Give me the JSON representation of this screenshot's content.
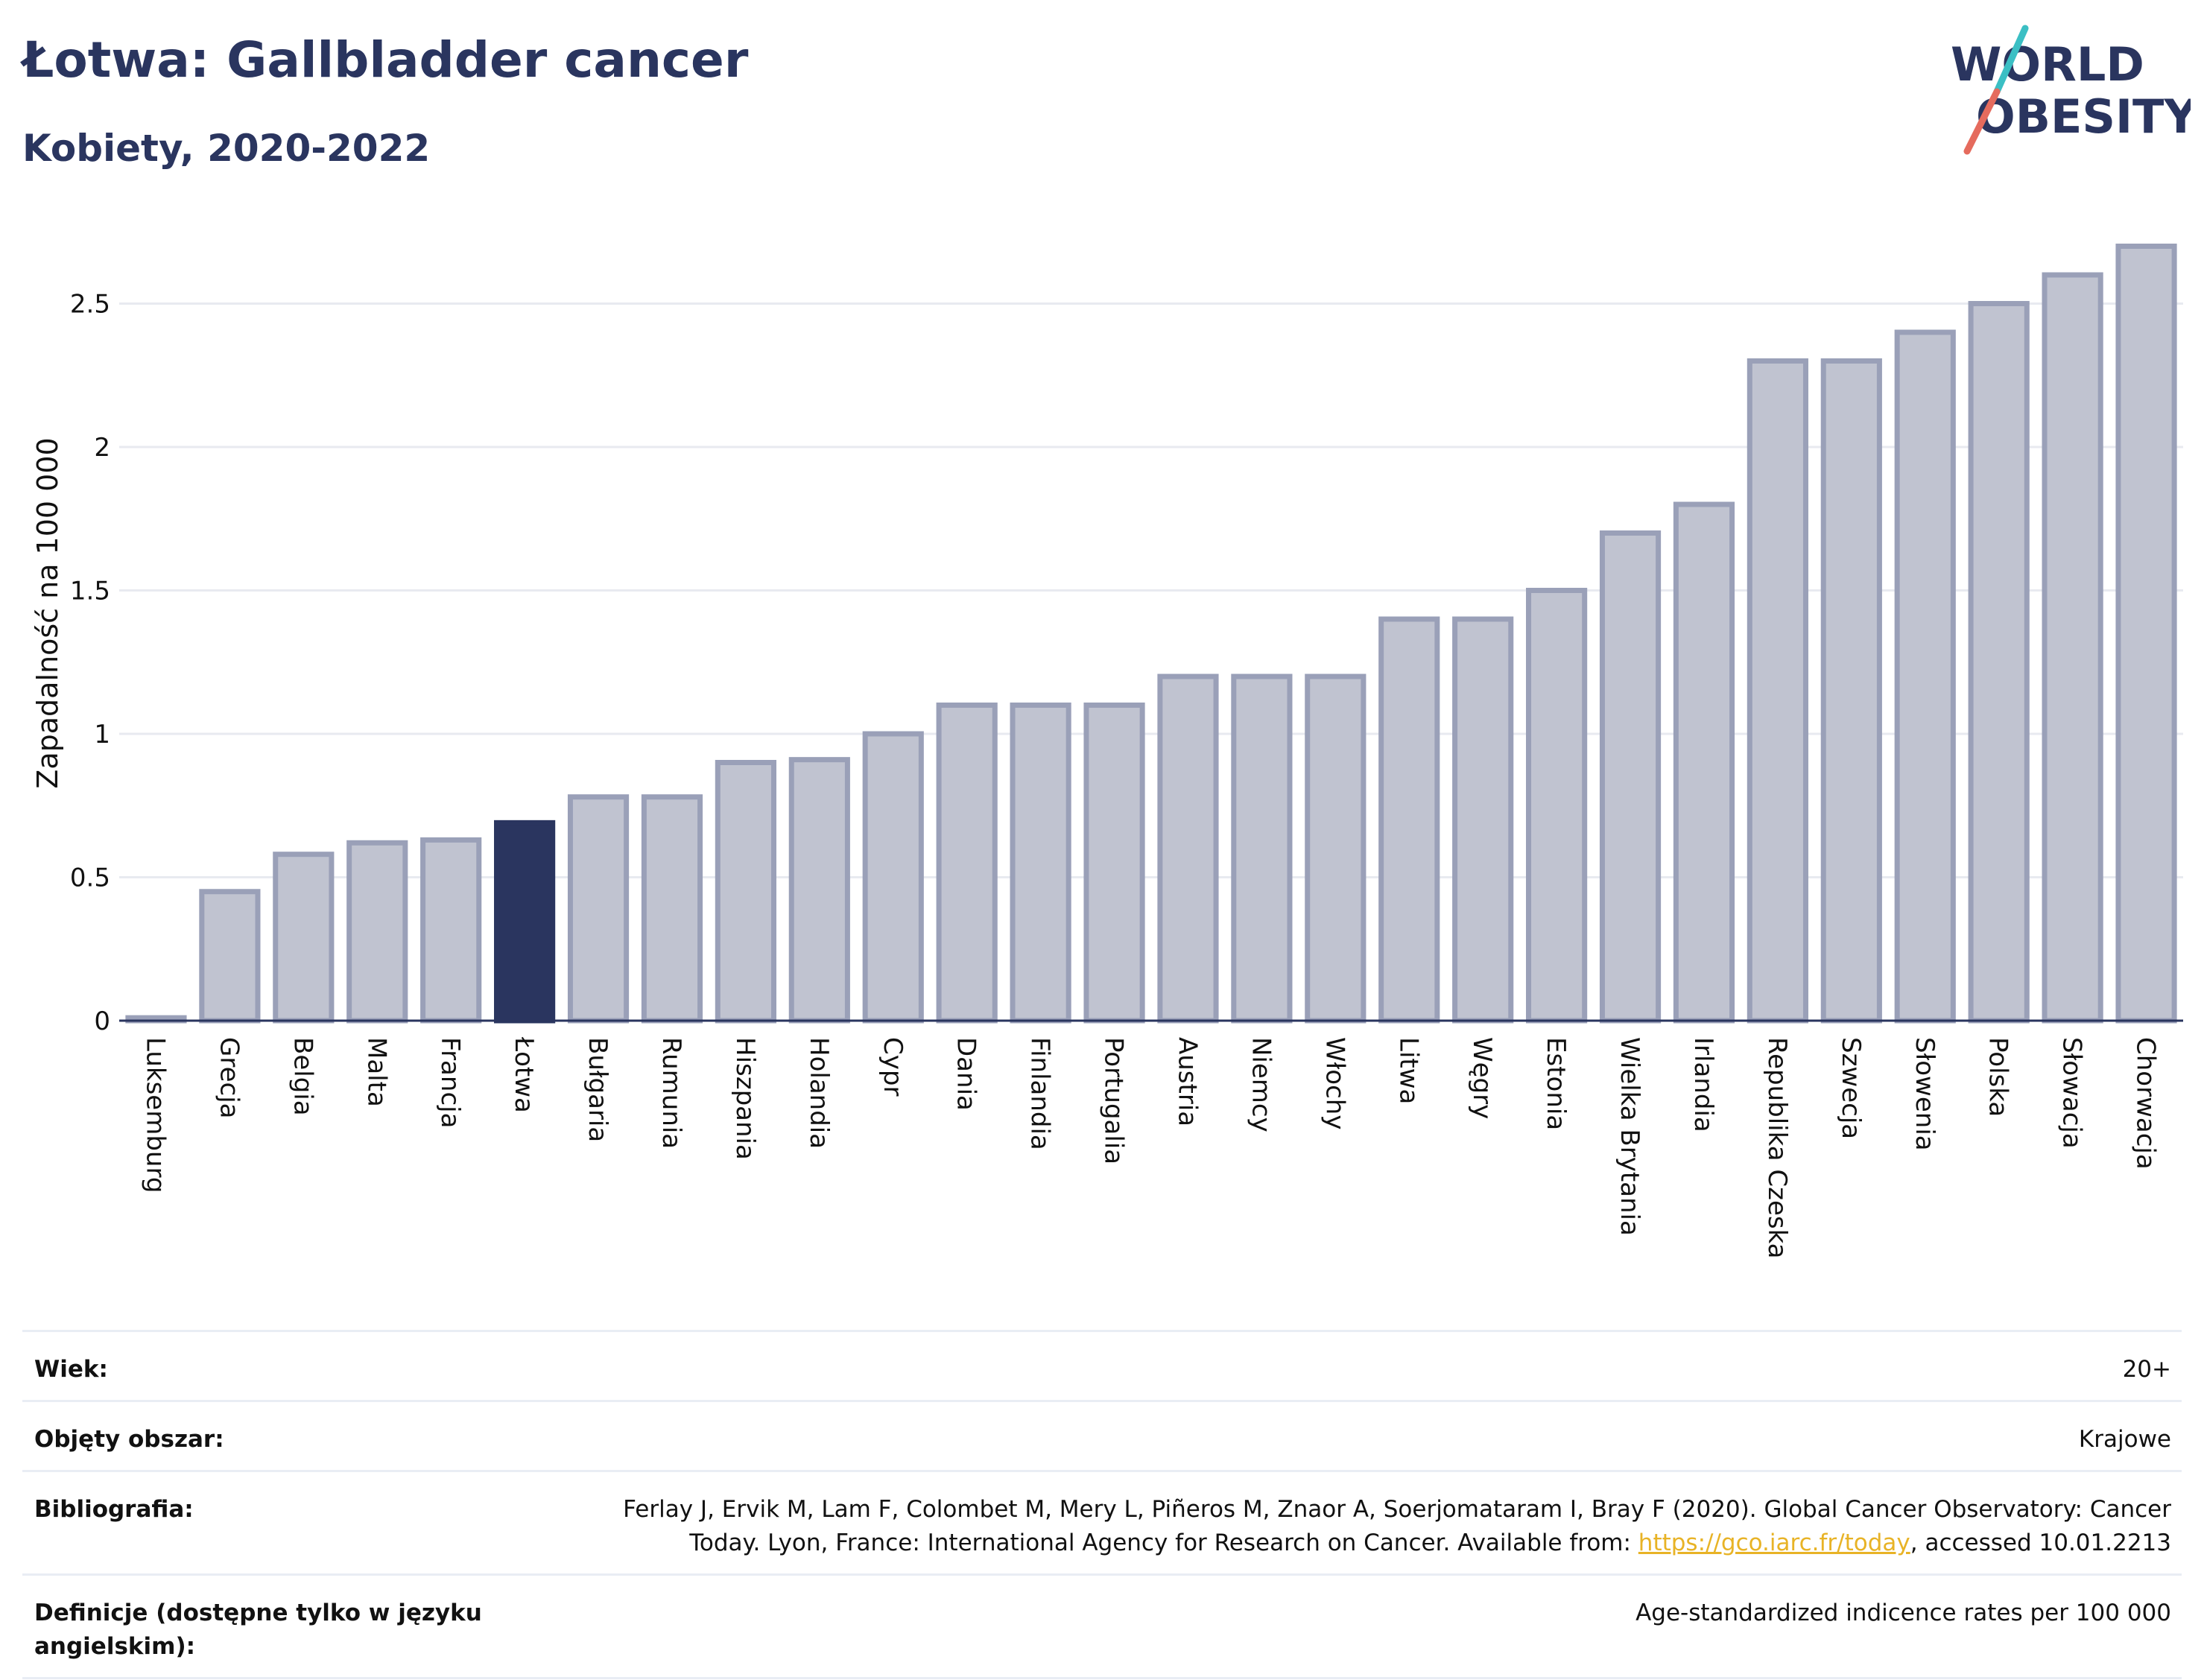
{
  "title": "Łotwa: Gallbladder cancer",
  "subtitle": "Kobiety, 2020-2022",
  "logo": {
    "line1": "WORLD",
    "line2": "OBESITY",
    "colors": {
      "text": "#2a355f",
      "slash_top": "#3bbfc4",
      "slash_bottom": "#e56b5d"
    }
  },
  "chart_data": {
    "type": "bar",
    "ylabel": "Zapadalność na 100 000",
    "ylim": [
      0,
      2.75
    ],
    "yticks": [
      "0",
      "0.5",
      "1",
      "1.5",
      "2",
      "2.5"
    ],
    "grid": true,
    "highlight": "Łotwa",
    "colors": {
      "bar": "#c0c3d0",
      "bar_outline": "#9aa0b8",
      "highlight": "#2a355f"
    },
    "categories": [
      "Luksemburg",
      "Grecja",
      "Belgia",
      "Malta",
      "Francja",
      "Łotwa",
      "Bułgaria",
      "Rumunia",
      "Hiszpania",
      "Holandia",
      "Cypr",
      "Dania",
      "Finlandia",
      "Portugalia",
      "Austria",
      "Niemcy",
      "Włochy",
      "Litwa",
      "Węgry",
      "Estonia",
      "Wielka Brytania",
      "Irlandia",
      "Republika Czeska",
      "Szwecja",
      "Słowenia",
      "Polska",
      "Słowacja",
      "Chorwacja"
    ],
    "values": [
      0.01,
      0.45,
      0.58,
      0.62,
      0.63,
      0.69,
      0.78,
      0.78,
      0.9,
      0.91,
      1.0,
      1.1,
      1.1,
      1.1,
      1.2,
      1.2,
      1.2,
      1.4,
      1.4,
      1.5,
      1.7,
      1.8,
      2.3,
      2.3,
      2.4,
      2.5,
      2.6,
      2.7
    ]
  },
  "meta": {
    "age_label": "Wiek:",
    "age_value": "20+",
    "area_label": "Objęty obszar:",
    "area_value": "Krajowe",
    "bib_label": "Bibliografia:",
    "bib_line1": "Ferlay J, Ervik M, Lam F, Colombet M, Mery L, Piñeros M, Znaor A, Soerjomataram I, Bray F (2020). Global Cancer Observatory: Cancer",
    "bib_line2_pre": "Today. Lyon, France: International Agency for Research on Cancer. Available from: ",
    "bib_link": "https://gco.iarc.fr/today",
    "bib_line2_post": ", accessed 10.01.2213",
    "def_label": "Definicje (dostępne tylko w języku angielskim):",
    "def_value": "Age-standardized indicence rates per 100 000"
  }
}
